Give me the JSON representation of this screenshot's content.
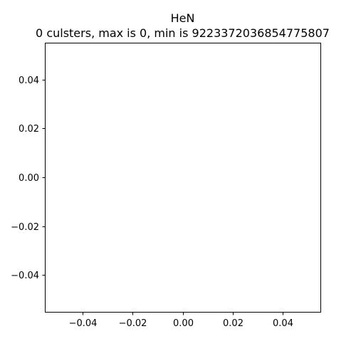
{
  "chart_data": {
    "type": "scatter",
    "title": "HeN",
    "subtitle": "0 culsters, max is 0, min is 9223372036854775807",
    "xlabel": "",
    "ylabel": "",
    "x": [],
    "y": [],
    "xlim": [
      -0.055,
      0.055
    ],
    "ylim": [
      -0.055,
      0.055
    ],
    "x_ticks": [
      -0.04,
      -0.02,
      0.0,
      0.02,
      0.04
    ],
    "y_ticks": [
      -0.04,
      -0.02,
      0.0,
      0.02,
      0.04
    ],
    "x_tick_labels": [
      "−0.04",
      "−0.02",
      "0.00",
      "0.02",
      "0.04"
    ],
    "y_tick_labels": [
      "−0.04",
      "−0.02",
      "0.00",
      "0.02",
      "0.04"
    ],
    "grid": false,
    "legend": "none",
    "colors": {
      "axes": "#000000",
      "background": "#ffffff"
    }
  }
}
